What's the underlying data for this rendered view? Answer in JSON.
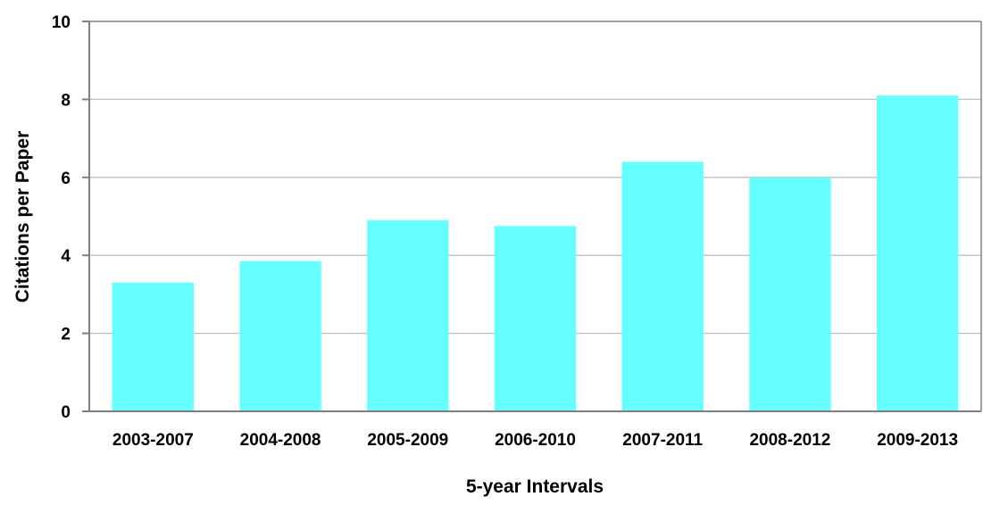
{
  "chart_data": {
    "type": "bar",
    "title": "",
    "xlabel": "5-year Intervals",
    "ylabel": "Citations per Paper",
    "categories": [
      "2003-2007",
      "2004-2008",
      "2005-2009",
      "2006-2010",
      "2007-2011",
      "2008-2012",
      "2009-2013"
    ],
    "series": [
      {
        "values": [
          3.3,
          3.85,
          4.9,
          4.75,
          6.4,
          6.0,
          8.1
        ]
      }
    ],
    "ylim": [
      0,
      10
    ],
    "yticks": [
      0,
      2,
      4,
      6,
      8,
      10
    ],
    "grid": true,
    "legend": "none",
    "colors": {
      "bar": "#66FFFF",
      "grid": "#BFBFBF",
      "axis": "#808080"
    }
  }
}
